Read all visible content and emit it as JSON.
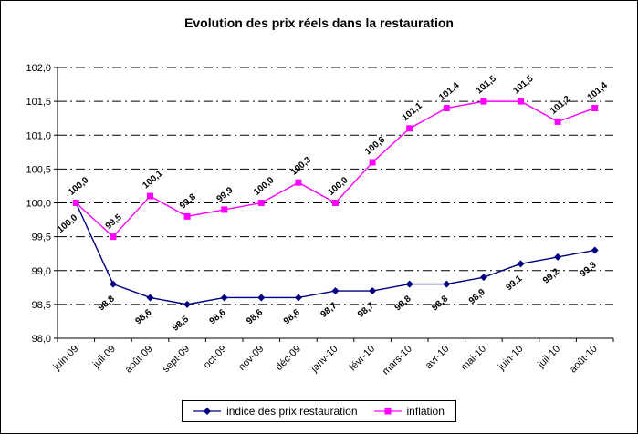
{
  "title": "Evolution des prix réels dans la restauration",
  "chart_data": {
    "type": "line",
    "categories": [
      "juin-09",
      "juil-09",
      "août-09",
      "sept-09",
      "oct-09",
      "nov-09",
      "déc-09",
      "janv-10",
      "févr-10",
      "mars-10",
      "avr-10",
      "mai-10",
      "juin-10",
      "juil-10",
      "août-10"
    ],
    "series": [
      {
        "name": "indice des prix restauration",
        "color": "#000080",
        "marker": "diamond",
        "values": [
          100.0,
          98.8,
          98.6,
          98.5,
          98.6,
          98.6,
          98.6,
          98.7,
          98.7,
          98.8,
          98.8,
          98.9,
          99.1,
          99.2,
          99.3
        ],
        "labels": [
          "100,0",
          "98,8",
          "98,6",
          "98,5",
          "98,6",
          "98,6",
          "98,6",
          "98,7",
          "98,7",
          "98,8",
          "98,8",
          "98,9",
          "99,1",
          "99,2",
          "99,3"
        ]
      },
      {
        "name": "inflation",
        "color": "#FF00FF",
        "marker": "square",
        "values": [
          100.0,
          99.5,
          100.1,
          99.8,
          99.9,
          100.0,
          100.3,
          100.0,
          100.6,
          101.1,
          101.4,
          101.5,
          101.5,
          101.2,
          101.4
        ],
        "labels": [
          "100,0",
          "99,5",
          "100,1",
          "99,8",
          "99,9",
          "100,0",
          "100,3",
          "100,0",
          "100,6",
          "101,1",
          "101,4",
          "101,5",
          "101,5",
          "101,2",
          "101,4"
        ]
      }
    ],
    "ylim": [
      98.0,
      102.0
    ],
    "ytick_step": 0.5,
    "ytick_labels": [
      "98,0",
      "98,5",
      "99,0",
      "99,5",
      "100,0",
      "100,5",
      "101,0",
      "101,5",
      "102,0"
    ],
    "grid": "horizontal-dashdot",
    "legend_position": "bottom"
  }
}
